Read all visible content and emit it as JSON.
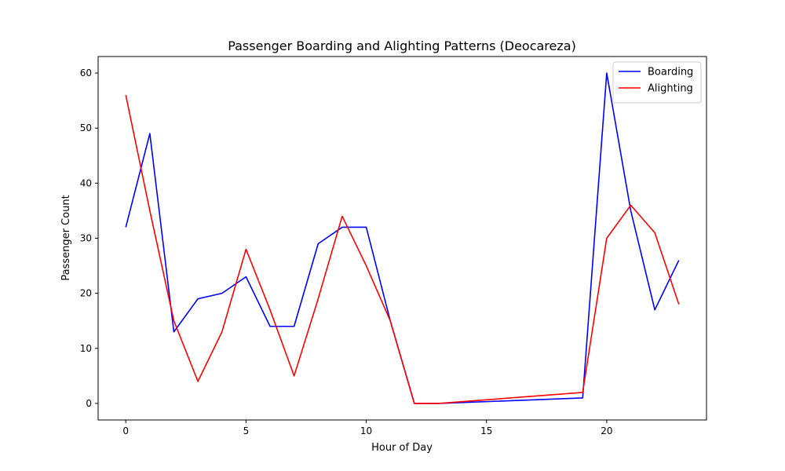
{
  "chart_data": {
    "type": "line",
    "title": "Passenger Boarding and Alighting Patterns (Deocareza)",
    "xlabel": "Hour of Day",
    "ylabel": "Passenger Count",
    "xlim": [
      -1.15,
      24.15
    ],
    "ylim": [
      -3,
      63
    ],
    "xticks": [
      0,
      5,
      10,
      15,
      20
    ],
    "yticks": [
      0,
      10,
      20,
      30,
      40,
      50,
      60
    ],
    "grid": false,
    "legend_position": "top-right",
    "series": [
      {
        "name": "Boarding",
        "color": "#0000ff",
        "x": [
          0,
          1,
          2,
          3,
          4,
          5,
          6,
          7,
          8,
          9,
          10,
          11,
          12,
          13,
          19,
          20,
          21,
          22,
          23
        ],
        "y": [
          32,
          49,
          13,
          19,
          20,
          23,
          14,
          14,
          29,
          32,
          32,
          15,
          0,
          0,
          1,
          60,
          35,
          17,
          26
        ]
      },
      {
        "name": "Alighting",
        "color": "#ff0000",
        "x": [
          0,
          1,
          2,
          3,
          4,
          5,
          6,
          7,
          8,
          9,
          10,
          11,
          12,
          13,
          19,
          20,
          21,
          22,
          23
        ],
        "y": [
          56,
          35,
          15,
          4,
          13,
          28,
          17,
          5,
          19,
          34,
          25,
          15,
          0,
          0,
          2,
          30,
          36,
          31,
          18
        ]
      }
    ]
  }
}
